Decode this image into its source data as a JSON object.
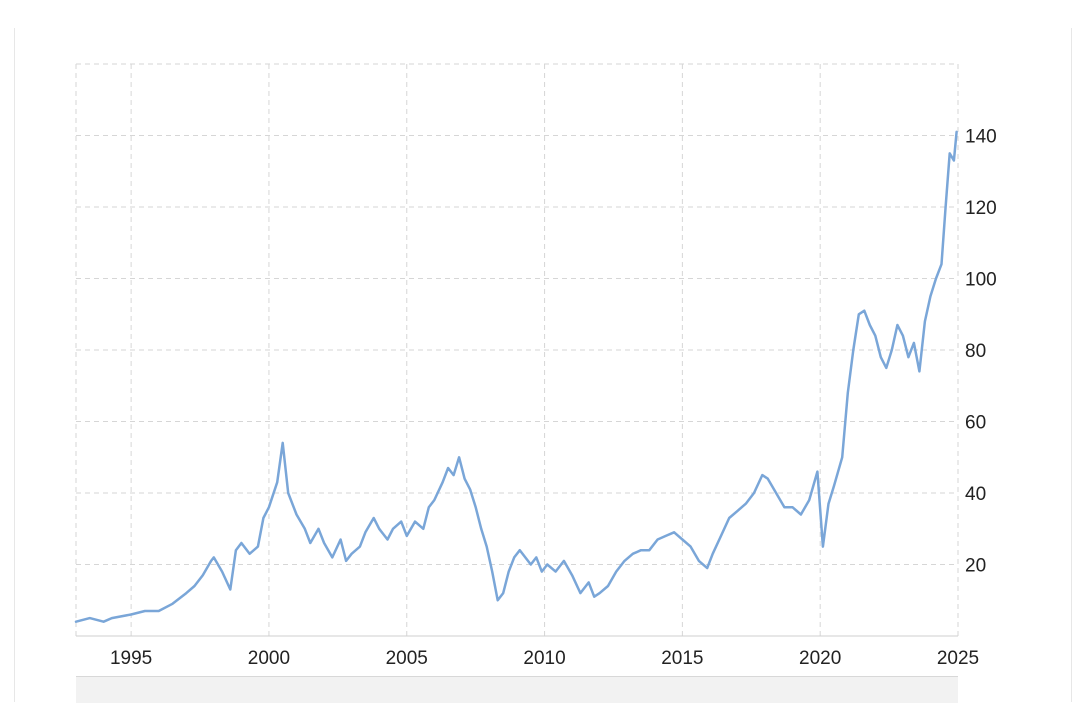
{
  "chart_data": {
    "type": "line",
    "title": "",
    "xlabel": "",
    "ylabel": "",
    "xlim": [
      1993.0,
      2025.0
    ],
    "ylim": [
      0,
      160
    ],
    "x_ticks": [
      "1995",
      "2000",
      "2005",
      "2010",
      "2015",
      "2020",
      "2025"
    ],
    "y_ticks": [
      "20",
      "40",
      "60",
      "80",
      "100",
      "120",
      "140"
    ],
    "grid": true,
    "legend": "none",
    "colors": {
      "line": "#7aa6d8",
      "grid": "#d6d6d6"
    },
    "series": [
      {
        "x": [
          1993.0,
          1993.5,
          1994.0,
          1994.3,
          1995.0,
          1995.5,
          1996.0,
          1996.5,
          1997.0,
          1997.3,
          1997.6,
          1997.9,
          1998.0,
          1998.3,
          1998.6,
          1998.8,
          1999.0,
          1999.3,
          1999.6,
          1999.8,
          2000.0,
          2000.3,
          2000.5,
          2000.7,
          2001.0,
          2001.3,
          2001.5,
          2001.8,
          2002.0,
          2002.3,
          2002.6,
          2002.8,
          2003.0,
          2003.3,
          2003.5,
          2003.8,
          2004.0,
          2004.3,
          2004.5,
          2004.8,
          2005.0,
          2005.3,
          2005.6,
          2005.8,
          2006.0,
          2006.3,
          2006.5,
          2006.7,
          2006.9,
          2007.1,
          2007.3,
          2007.5,
          2007.7,
          2007.9,
          2008.1,
          2008.3,
          2008.5,
          2008.7,
          2008.9,
          2009.1,
          2009.3,
          2009.5,
          2009.7,
          2009.9,
          2010.1,
          2010.4,
          2010.7,
          2011.0,
          2011.3,
          2011.6,
          2011.8,
          2012.0,
          2012.3,
          2012.6,
          2012.9,
          2013.2,
          2013.5,
          2013.8,
          2014.1,
          2014.4,
          2014.7,
          2015.0,
          2015.3,
          2015.6,
          2015.9,
          2016.1,
          2016.4,
          2016.7,
          2017.0,
          2017.3,
          2017.6,
          2017.9,
          2018.1,
          2018.4,
          2018.7,
          2019.0,
          2019.3,
          2019.6,
          2019.9,
          2020.1,
          2020.3,
          2020.5,
          2020.8,
          2021.0,
          2021.2,
          2021.4,
          2021.6,
          2021.8,
          2022.0,
          2022.2,
          2022.4,
          2022.6,
          2022.8,
          2023.0,
          2023.2,
          2023.4,
          2023.6,
          2023.8,
          2024.0,
          2024.2,
          2024.4,
          2024.55,
          2024.7,
          2024.85,
          2024.95
        ],
        "y": [
          4,
          5,
          4,
          5,
          6,
          7,
          7,
          9,
          12,
          14,
          17,
          21,
          22,
          18,
          13,
          24,
          26,
          23,
          25,
          33,
          36,
          43,
          54,
          40,
          34,
          30,
          26,
          30,
          26,
          22,
          27,
          21,
          23,
          25,
          29,
          33,
          30,
          27,
          30,
          32,
          28,
          32,
          30,
          36,
          38,
          43,
          47,
          45,
          50,
          44,
          41,
          36,
          30,
          25,
          18,
          10,
          12,
          18,
          22,
          24,
          22,
          20,
          22,
          18,
          20,
          18,
          21,
          17,
          12,
          15,
          11,
          12,
          14,
          18,
          21,
          23,
          24,
          24,
          27,
          28,
          29,
          27,
          25,
          21,
          19,
          23,
          28,
          33,
          35,
          37,
          40,
          45,
          44,
          40,
          36,
          36,
          34,
          38,
          46,
          25,
          37,
          42,
          50,
          68,
          80,
          90,
          91,
          87,
          84,
          78,
          75,
          80,
          87,
          84,
          78,
          82,
          74,
          88,
          95,
          100,
          104,
          120,
          135,
          133,
          141
        ]
      }
    ]
  }
}
